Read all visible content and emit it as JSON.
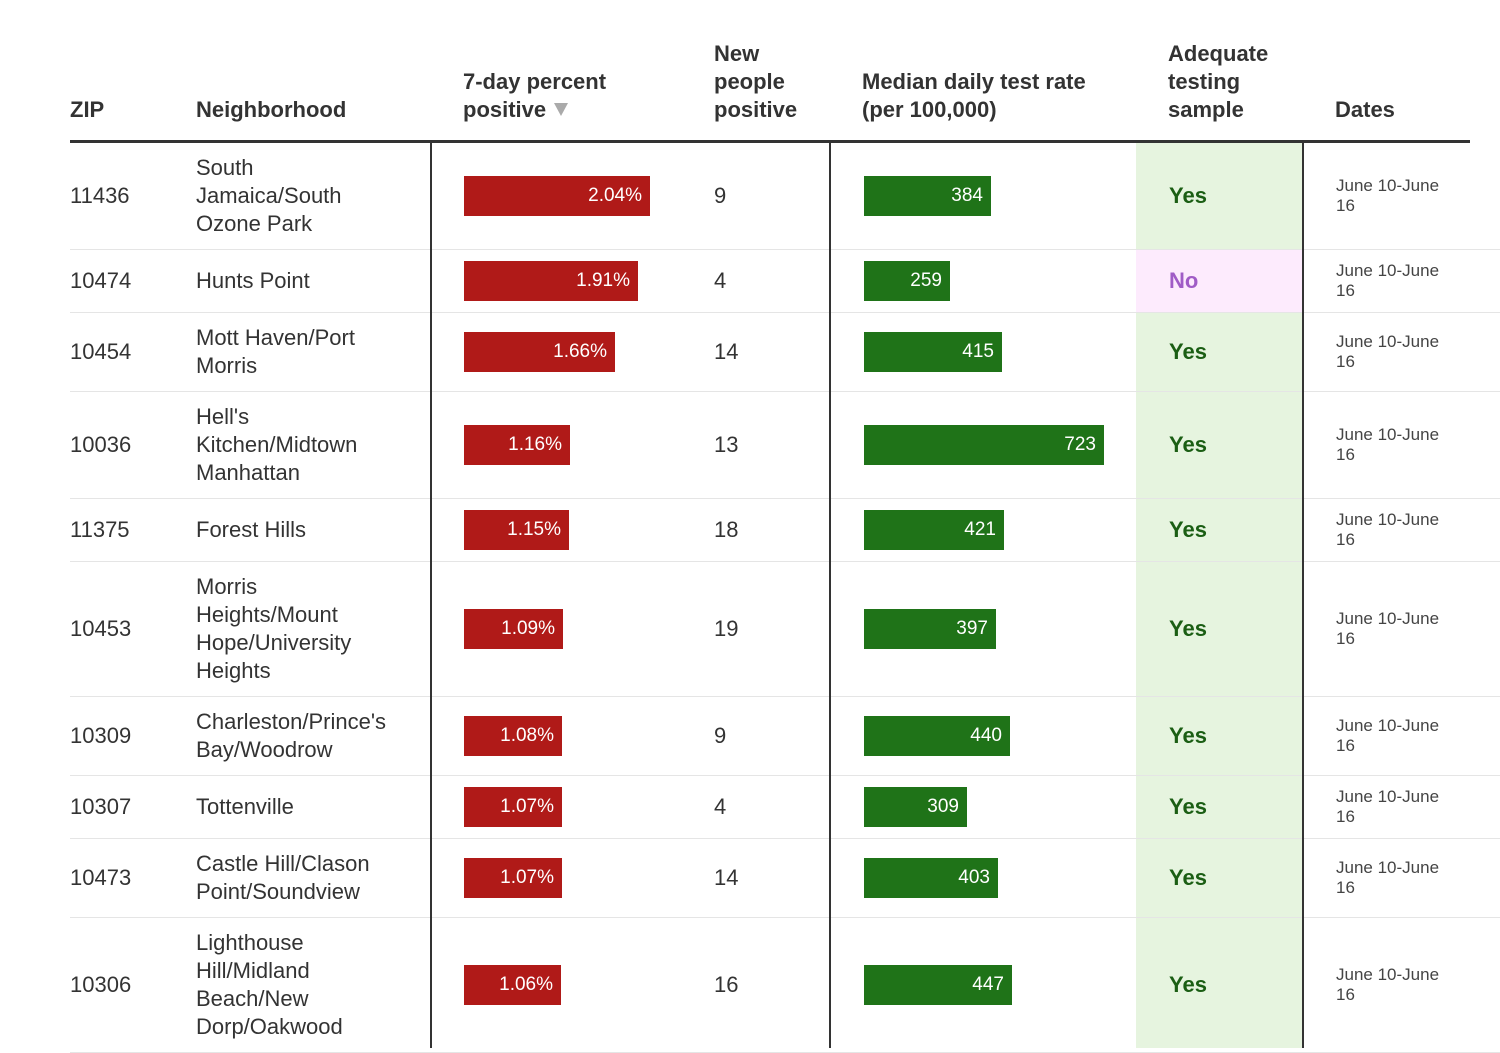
{
  "header": {
    "zip": "ZIP",
    "neighborhood": "Neighborhood",
    "pct_line1": "7-day percent",
    "pct_line2": "positive",
    "new_line1": "New",
    "new_line2": "people",
    "new_line3": "positive",
    "rate_line1": "Median daily test rate",
    "rate_line2": "(per 100,000)",
    "adq_line1": "Adequate",
    "adq_line2": "testing",
    "adq_line3": "sample",
    "dates": "Dates",
    "sort_icon": "triangle-down"
  },
  "colors": {
    "pct_bar": "#b01a18",
    "rate_bar": "#1f7318",
    "adequate_yes_bg": "#e6f4df",
    "adequate_no_bg": "#fdebfd",
    "yes_text": "#1b5e14",
    "no_text": "#a05cc6"
  },
  "rows": [
    {
      "zip": "11436",
      "neighborhood": [
        "South",
        "Jamaica/South",
        "Ozone Park"
      ],
      "pct_label": "2.04%",
      "pct_value": 2.04,
      "new_positive": "9",
      "rate_label": "384",
      "rate_value": 384,
      "adequate": "Yes",
      "dates": [
        "June 10-June",
        "16"
      ]
    },
    {
      "zip": "10474",
      "neighborhood": [
        "Hunts Point"
      ],
      "pct_label": "1.91%",
      "pct_value": 1.91,
      "new_positive": "4",
      "rate_label": "259",
      "rate_value": 259,
      "adequate": "No",
      "dates": [
        "June 10-June",
        "16"
      ]
    },
    {
      "zip": "10454",
      "neighborhood": [
        "Mott Haven/Port",
        "Morris"
      ],
      "pct_label": "1.66%",
      "pct_value": 1.66,
      "new_positive": "14",
      "rate_label": "415",
      "rate_value": 415,
      "adequate": "Yes",
      "dates": [
        "June 10-June",
        "16"
      ]
    },
    {
      "zip": "10036",
      "neighborhood": [
        "Hell's",
        "Kitchen/Midtown",
        "Manhattan"
      ],
      "pct_label": "1.16%",
      "pct_value": 1.16,
      "new_positive": "13",
      "rate_label": "723",
      "rate_value": 723,
      "adequate": "Yes",
      "dates": [
        "June 10-June",
        "16"
      ]
    },
    {
      "zip": "11375",
      "neighborhood": [
        "Forest Hills"
      ],
      "pct_label": "1.15%",
      "pct_value": 1.15,
      "new_positive": "18",
      "rate_label": "421",
      "rate_value": 421,
      "adequate": "Yes",
      "dates": [
        "June 10-June",
        "16"
      ]
    },
    {
      "zip": "10453",
      "neighborhood": [
        "Morris",
        "Heights/Mount",
        "Hope/University",
        "Heights"
      ],
      "pct_label": "1.09%",
      "pct_value": 1.09,
      "new_positive": "19",
      "rate_label": "397",
      "rate_value": 397,
      "adequate": "Yes",
      "dates": [
        "June 10-June",
        "16"
      ]
    },
    {
      "zip": "10309",
      "neighborhood": [
        "Charleston/Prince's",
        "Bay/Woodrow"
      ],
      "pct_label": "1.08%",
      "pct_value": 1.08,
      "new_positive": "9",
      "rate_label": "440",
      "rate_value": 440,
      "adequate": "Yes",
      "dates": [
        "June 10-June",
        "16"
      ]
    },
    {
      "zip": "10307",
      "neighborhood": [
        "Tottenville"
      ],
      "pct_label": "1.07%",
      "pct_value": 1.07,
      "new_positive": "4",
      "rate_label": "309",
      "rate_value": 309,
      "adequate": "Yes",
      "dates": [
        "June 10-June",
        "16"
      ]
    },
    {
      "zip": "10473",
      "neighborhood": [
        "Castle Hill/Clason",
        "Point/Soundview"
      ],
      "pct_label": "1.07%",
      "pct_value": 1.07,
      "new_positive": "14",
      "rate_label": "403",
      "rate_value": 403,
      "adequate": "Yes",
      "dates": [
        "June 10-June",
        "16"
      ]
    },
    {
      "zip": "10306",
      "neighborhood": [
        "Lighthouse",
        "Hill/Midland",
        "Beach/New",
        "Dorp/Oakwood"
      ],
      "pct_label": "1.06%",
      "pct_value": 1.06,
      "new_positive": "16",
      "rate_label": "447",
      "rate_value": 447,
      "adequate": "Yes",
      "dates": [
        "June 10-June",
        "16"
      ]
    }
  ]
}
